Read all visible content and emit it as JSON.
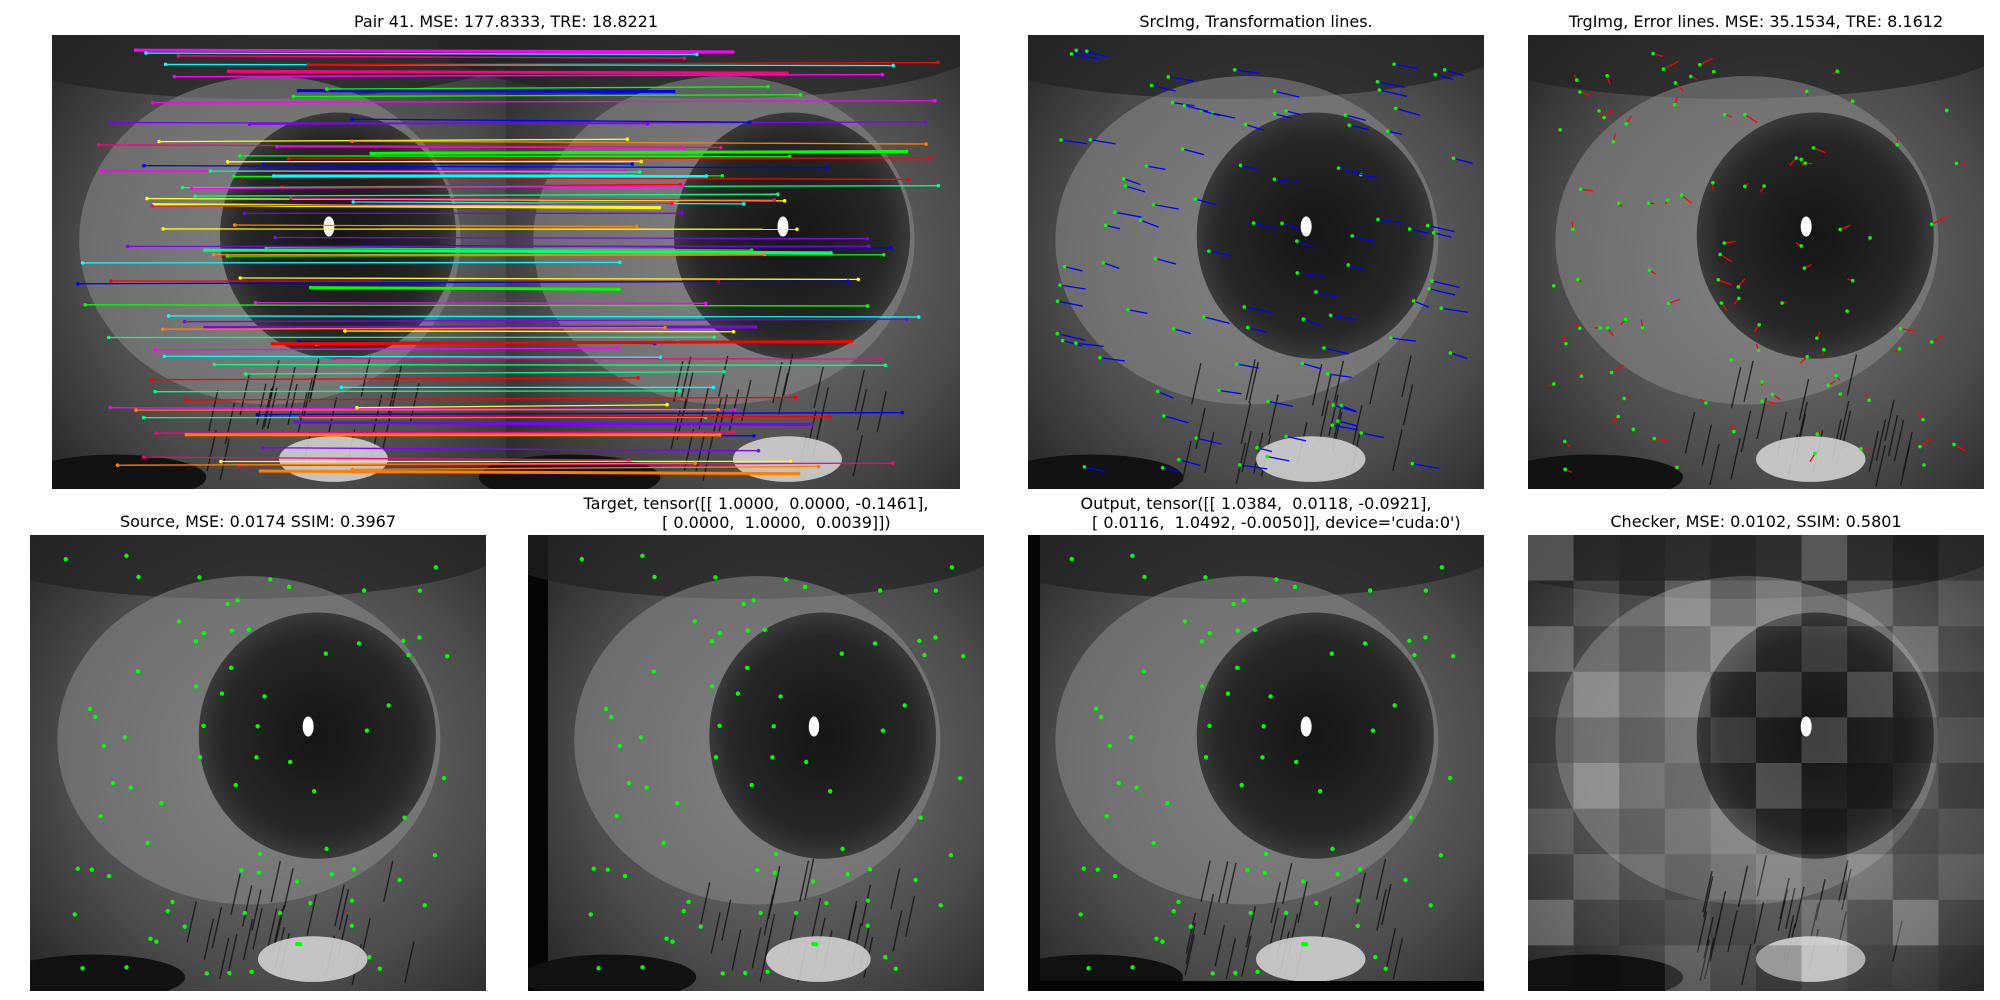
{
  "figure": {
    "panels": [
      {
        "id": "match",
        "title": "Pair 41. MSE: 177.8333, TRE: 18.8221"
      },
      {
        "id": "src-transform",
        "title": "SrcImg, Transformation lines."
      },
      {
        "id": "trg-error",
        "title": "TrgImg, Error lines. MSE: 35.1534, TRE: 8.1612"
      },
      {
        "id": "source",
        "title": "Source, MSE: 0.0174 SSIM: 0.3967"
      },
      {
        "id": "target",
        "title": "Target, tensor([[ 1.0000,  0.0000, -0.1461],\n        [ 0.0000,  1.0000,  0.0039]])"
      },
      {
        "id": "output",
        "title": "Output, tensor([[ 1.0384,  0.0118, -0.0921],\n        [ 0.0116,  1.0492, -0.0050]], device='cuda:0')"
      },
      {
        "id": "checker",
        "title": "Checker, MSE: 0.0102, SSIM: 0.5801"
      }
    ]
  },
  "colors": {
    "keypoint": "#00ff00",
    "match_lines": [
      "#00ff00",
      "#ff00ff",
      "#00ffff",
      "#ffff00",
      "#ff8000",
      "#0000ff",
      "#ff0000",
      "#8000ff",
      "#00ff80",
      "#ff0080"
    ],
    "transform_line": "#0000ff",
    "error_line": "#ff0000"
  }
}
